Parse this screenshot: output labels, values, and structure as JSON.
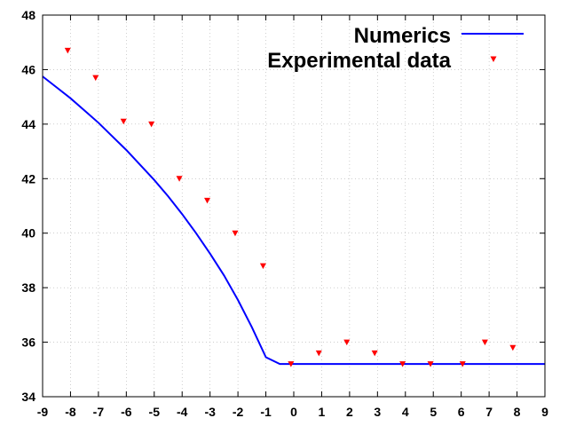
{
  "chart_data": {
    "type": "line",
    "title": "",
    "xlabel": "",
    "ylabel": "",
    "xlim": [
      -9,
      9
    ],
    "ylim": [
      34,
      48
    ],
    "xticks": [
      -9,
      -8,
      -7,
      -6,
      -5,
      -4,
      -3,
      -2,
      -1,
      0,
      1,
      2,
      3,
      4,
      5,
      6,
      7,
      8,
      9
    ],
    "yticks": [
      34,
      36,
      38,
      40,
      42,
      44,
      46,
      48
    ],
    "grid": true,
    "legend_position": "top-right",
    "series": [
      {
        "name": "Numerics",
        "kind": "line",
        "color": "#0000ff",
        "x": [
          -9,
          -8.5,
          -8,
          -7.5,
          -7,
          -6.5,
          -6,
          -5.5,
          -5,
          -4.5,
          -4,
          -3.5,
          -3,
          -2.5,
          -2,
          -1.5,
          -1,
          -0.5,
          0,
          9
        ],
        "y": [
          45.75,
          45.35,
          44.95,
          44.5,
          44.05,
          43.55,
          43.05,
          42.5,
          41.95,
          41.35,
          40.7,
          40.0,
          39.25,
          38.45,
          37.55,
          36.55,
          35.45,
          35.2,
          35.2,
          35.2
        ]
      },
      {
        "name": "Experimental data",
        "kind": "scatter",
        "color": "#ff0000",
        "marker": "triangle-down",
        "x": [
          -8.1,
          -7.1,
          -6.1,
          -5.1,
          -4.1,
          -3.1,
          -2.1,
          -1.1,
          -0.1,
          0.9,
          1.9,
          2.9,
          3.9,
          4.9,
          6.05,
          6.85,
          7.85
        ],
        "y": [
          46.7,
          45.7,
          44.1,
          44.0,
          42.0,
          41.2,
          40.0,
          38.8,
          35.2,
          35.6,
          36.0,
          35.6,
          35.2,
          35.2,
          35.2,
          36.0,
          35.8
        ]
      }
    ]
  }
}
